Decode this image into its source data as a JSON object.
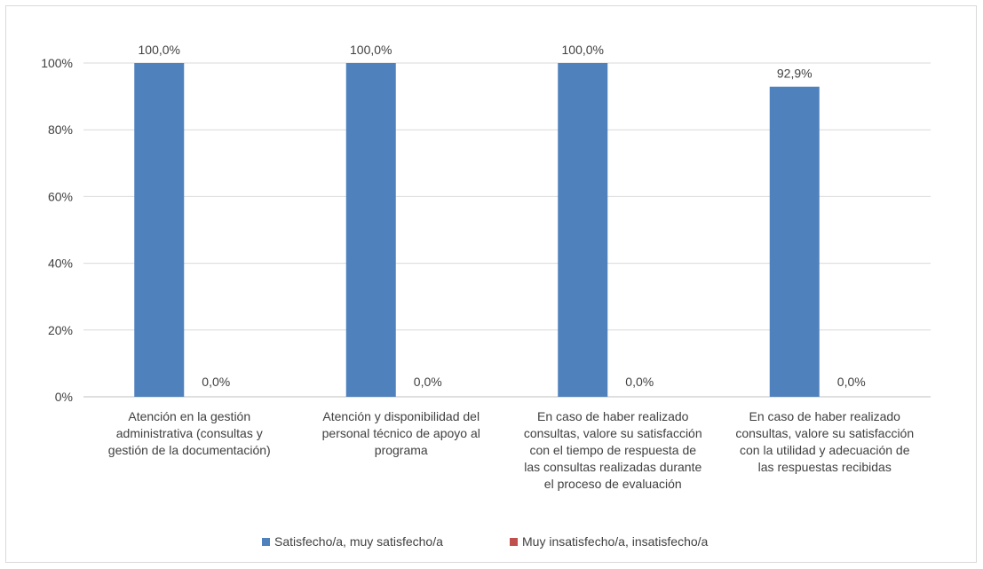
{
  "chart_data": {
    "type": "bar",
    "categories": [
      [
        "Atención en la gestión",
        "administrativa (consultas y",
        "gestión de la documentación)"
      ],
      [
        "Atención y disponibilidad del",
        "personal técnico de apoyo al",
        "programa"
      ],
      [
        "En caso de haber realizado",
        "consultas, valore su satisfacción",
        "con el tiempo de respuesta de",
        "las consultas realizadas durante",
        "el proceso de evaluación"
      ],
      [
        "En caso de haber realizado",
        "consultas, valore su satisfacción",
        "con la utilidad y adecuación de",
        "las respuestas recibidas"
      ]
    ],
    "series": [
      {
        "name": "Satisfecho/a, muy satisfecho/a",
        "color": "#4f81bd",
        "values": [
          100.0,
          100.0,
          100.0,
          92.9
        ],
        "labels": [
          "100,0%",
          "100,0%",
          "100,0%",
          "92,9%"
        ]
      },
      {
        "name": "Muy insatisfecho/a, insatisfecho/a",
        "color": "#c0504d",
        "values": [
          0.0,
          0.0,
          0.0,
          0.0
        ],
        "labels": [
          "0,0%",
          "0,0%",
          "0,0%",
          "0,0%"
        ]
      }
    ],
    "ylim": [
      0,
      100
    ],
    "yticks": [
      "0%",
      "20%",
      "40%",
      "60%",
      "80%",
      "100%"
    ],
    "grid": true,
    "legend": "bottom"
  }
}
